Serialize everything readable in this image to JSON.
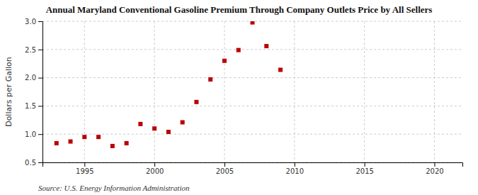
{
  "chart_data": {
    "type": "scatter",
    "title": "Annual Maryland Conventional Gasoline Premium Through Company Outlets Price by All Sellers",
    "ylabel": "Dollars per Gallon",
    "annotation": "Source: U.S. Energy Information Administration",
    "x": [
      1993,
      1994,
      1995,
      1996,
      1997,
      1998,
      1999,
      2000,
      2001,
      2002,
      2003,
      2004,
      2005,
      2006,
      2007,
      2008,
      2009
    ],
    "values": [
      0.84,
      0.87,
      0.95,
      0.95,
      0.79,
      0.84,
      1.18,
      1.1,
      1.04,
      1.21,
      1.57,
      1.97,
      2.3,
      2.49,
      2.98,
      2.56,
      2.14
    ],
    "color": "#bb0000",
    "marker": "square",
    "xlim": [
      1992,
      2022
    ],
    "ylim": [
      0.5,
      3.0
    ],
    "xticks": [
      1995,
      2000,
      2005,
      2010,
      2015,
      2020
    ],
    "yticks": [
      0.5,
      {
        "value": 1.0,
        "label": "1.0"
      },
      1.5,
      {
        "value": 2.0,
        "label": "2.0"
      },
      2.5,
      {
        "value": 3.0,
        "label": "3.0"
      }
    ],
    "grid": true
  }
}
